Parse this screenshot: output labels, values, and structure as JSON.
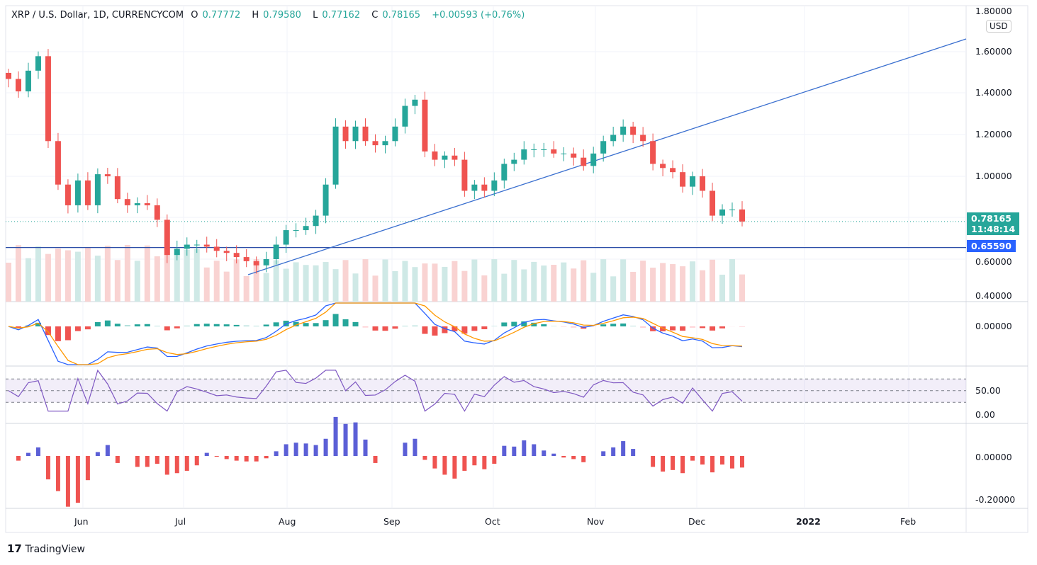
{
  "header": {
    "symbol": "XRP / U.S. Dollar, 1D, CURRENCYCOM",
    "open_label": "O",
    "open": "0.77772",
    "high_label": "H",
    "high": "0.79580",
    "low_label": "L",
    "low": "0.77162",
    "close_label": "C",
    "close": "0.78165",
    "change": "+0.00593 (+0.76%)"
  },
  "currency": "USD",
  "price_tag": {
    "price": "0.78165",
    "countdown": "11:48:14",
    "color": "#26a69a"
  },
  "level_tag": {
    "price": "0.65590",
    "color": "#2962ff"
  },
  "brand": "TradingView",
  "colors": {
    "up": "#26a69a",
    "down": "#ef5350",
    "line": "#3a6fcf"
  },
  "chart_data": {
    "type": "candlestick",
    "price_axis": {
      "ticks": [
        "1.80000",
        "1.60000",
        "1.40000",
        "1.20000",
        "1.00000",
        "0.60000",
        "0.40000"
      ],
      "range": [
        0.4,
        1.8
      ]
    },
    "macd_axis": {
      "ticks": [
        "0.00000"
      ]
    },
    "rsi_axis": {
      "ticks": [
        "50.00",
        "0.00"
      ],
      "bands": [
        70,
        50,
        30
      ]
    },
    "osc_axis": {
      "ticks": [
        "0.00000",
        "-0.20000"
      ]
    },
    "x_ticks": [
      "Jun",
      "Jul",
      "Aug",
      "Sep",
      "Oct",
      "Nov",
      "Dec",
      "2022",
      "Feb"
    ],
    "closes": [
      1.47,
      1.41,
      1.51,
      1.58,
      1.17,
      0.96,
      0.86,
      0.98,
      0.86,
      1.01,
      1.0,
      0.89,
      0.86,
      0.87,
      0.86,
      0.79,
      0.62,
      0.65,
      0.67,
      0.67,
      0.66,
      0.64,
      0.63,
      0.61,
      0.59,
      0.57,
      0.6,
      0.67,
      0.74,
      0.74,
      0.76,
      0.81,
      0.96,
      1.24,
      1.17,
      1.24,
      1.17,
      1.15,
      1.17,
      1.24,
      1.34,
      1.37,
      1.12,
      1.08,
      1.1,
      1.08,
      0.93,
      0.96,
      0.93,
      0.98,
      1.06,
      1.08,
      1.13,
      1.13,
      1.13,
      1.11,
      1.11,
      1.09,
      1.05,
      1.11,
      1.17,
      1.2,
      1.24,
      1.2,
      1.17,
      1.06,
      1.04,
      1.02,
      0.95,
      1.0,
      0.93,
      0.81,
      0.84,
      0.84,
      0.78165
    ],
    "support_level": 0.6559
  }
}
